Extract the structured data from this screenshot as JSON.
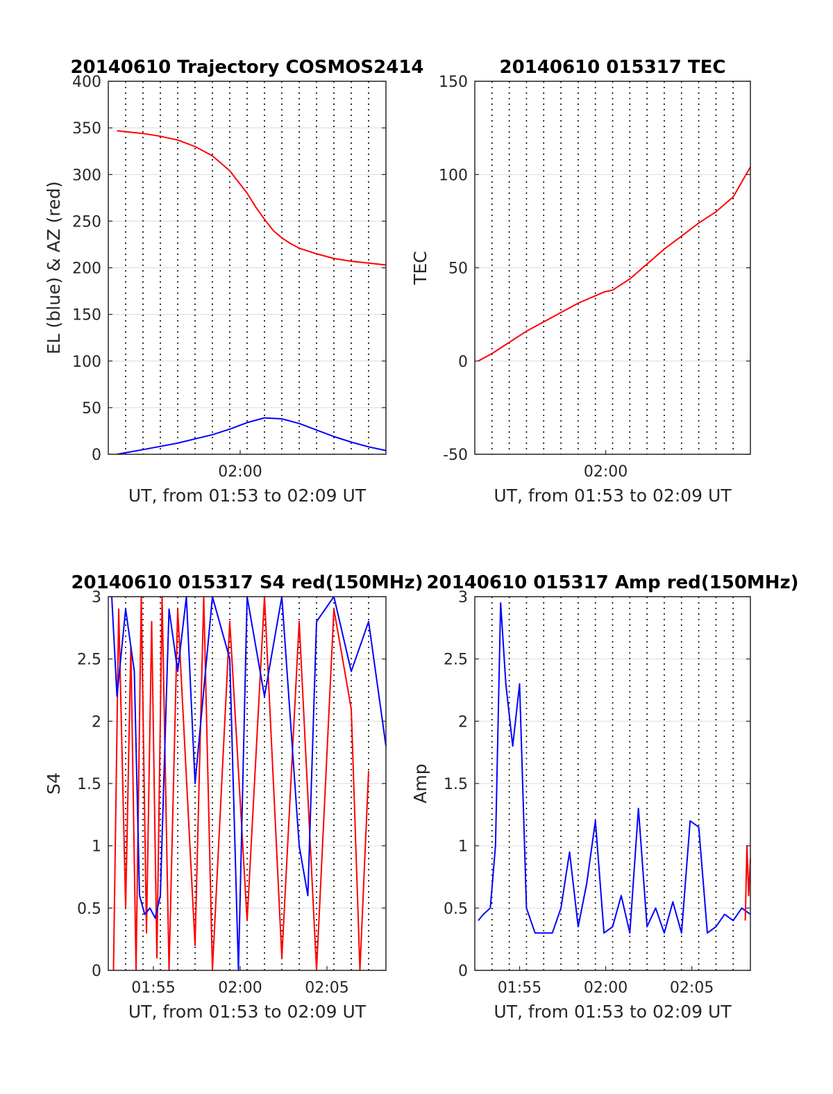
{
  "colors": {
    "el": "#0000ff",
    "az": "#ff0000",
    "tec": "#ff0000",
    "s4_red": "#ff0000",
    "s4_blue": "#0000ff",
    "grid": "#e0e0e0",
    "axis": "#262626"
  },
  "chart_data": [
    {
      "id": "trajectory",
      "type": "line",
      "title": "20140610 Trajectory COSMOS2414",
      "xlabel": "UT, from 01:53 to 02:09 UT",
      "ylabel": "EL (blue) & AZ (red)",
      "xlim": [
        0,
        16
      ],
      "ylim": [
        0,
        400
      ],
      "yticks": [
        "0",
        "50",
        "100",
        "150",
        "200",
        "250",
        "300",
        "350",
        "400"
      ],
      "xticks": [
        "02:00"
      ],
      "series": [
        {
          "name": "EL",
          "color": "#0000ff",
          "x": [
            0.5,
            2,
            4,
            6,
            7,
            8,
            9,
            10,
            11,
            12,
            13,
            14,
            15,
            16
          ],
          "y": [
            0,
            5,
            12,
            21,
            27,
            34,
            39,
            38,
            33,
            26,
            19,
            13,
            8,
            4
          ]
        },
        {
          "name": "AZ",
          "color": "#ff0000",
          "x": [
            0.5,
            2,
            3,
            4,
            5,
            6,
            7,
            7.5,
            8,
            8.5,
            9,
            9.5,
            10,
            10.5,
            11,
            12,
            13,
            14,
            15,
            16
          ],
          "y": [
            347,
            344,
            341,
            337,
            330,
            320,
            304,
            292,
            280,
            265,
            252,
            240,
            232,
            226,
            221,
            215,
            210,
            207,
            205,
            203
          ]
        }
      ]
    },
    {
      "id": "tec",
      "type": "line",
      "title": "20140610 015317 TEC",
      "xlabel": "UT, from 01:53 to 02:09 UT",
      "ylabel": "TEC",
      "xlim": [
        0,
        16
      ],
      "ylim": [
        -50,
        150
      ],
      "yticks": [
        "-50",
        "0",
        "50",
        "100",
        "150"
      ],
      "xticks": [
        "02:00"
      ],
      "series": [
        {
          "name": "TEC",
          "color": "#ff0000",
          "x": [
            0.2,
            1,
            2,
            3,
            4,
            5,
            6,
            7,
            7.5,
            8,
            9,
            10,
            11,
            12,
            13,
            14,
            15,
            16
          ],
          "y": [
            0,
            4,
            10,
            16,
            21,
            26,
            31,
            35,
            37,
            38,
            44,
            52,
            60,
            67,
            74,
            80,
            88,
            104
          ]
        }
      ]
    },
    {
      "id": "s4",
      "type": "line",
      "title": "20140610 015317 S4 red(150MHz)",
      "xlabel": "UT, from 01:53 to 02:09 UT",
      "ylabel": "S4",
      "xlim": [
        0,
        16
      ],
      "ylim": [
        0,
        3
      ],
      "yticks": [
        "0",
        "0.5",
        "1",
        "1.5",
        "2",
        "2.5",
        "3"
      ],
      "xticks": [
        "01:55",
        "02:00",
        "02:05"
      ],
      "series": [
        {
          "name": "S4 red",
          "color": "#ff0000",
          "x": [
            0.3,
            0.6,
            1,
            1.3,
            1.6,
            1.9,
            2.2,
            2.5,
            2.8,
            3.1,
            3.5,
            4,
            5,
            5.5,
            6,
            7,
            8,
            9,
            10,
            11,
            12,
            13,
            14,
            14.5,
            15
          ],
          "y": [
            0,
            2.9,
            0.5,
            2.6,
            0,
            3,
            0.3,
            2.8,
            0.1,
            3,
            0,
            2.9,
            0.2,
            3,
            0,
            2.8,
            0.4,
            3,
            0.1,
            2.8,
            0,
            2.9,
            2.1,
            0,
            1.6
          ]
        },
        {
          "name": "S4 blue",
          "color": "#0000ff",
          "x": [
            0.2,
            0.5,
            1,
            1.5,
            1.8,
            2.1,
            2.4,
            2.7,
            3,
            3.5,
            4,
            4.5,
            5,
            6,
            7,
            7.5,
            8,
            9,
            10,
            11,
            11.5,
            12,
            13,
            14,
            15,
            16
          ],
          "y": [
            3,
            2.2,
            2.9,
            2.4,
            0.6,
            0.45,
            0.5,
            0.42,
            0.6,
            2.9,
            2.4,
            3,
            1.5,
            3,
            2.5,
            0,
            3,
            2.2,
            3,
            1,
            0.6,
            2.8,
            3,
            2.4,
            2.8,
            1.8
          ]
        }
      ]
    },
    {
      "id": "amp",
      "type": "line",
      "title": "20140610 015317 Amp red(150MHz)",
      "xlabel": "UT, from 01:53 to 02:09 UT",
      "ylabel": "Amp",
      "xlim": [
        0,
        16
      ],
      "ylim": [
        0,
        3
      ],
      "yticks": [
        "0",
        "0.5",
        "1",
        "1.5",
        "2",
        "2.5",
        "3"
      ],
      "xticks": [
        "01:55",
        "02:00",
        "02:05"
      ],
      "series": [
        {
          "name": "Amp blue",
          "color": "#0000ff",
          "x": [
            0.2,
            0.5,
            0.9,
            1.2,
            1.5,
            1.8,
            2.2,
            2.6,
            3,
            3.5,
            4,
            4.5,
            5,
            5.5,
            6,
            6.5,
            7,
            7.5,
            8,
            8.5,
            9,
            9.5,
            10,
            10.5,
            11,
            11.5,
            12,
            12.5,
            13,
            13.5,
            14,
            14.5,
            15,
            15.5,
            16
          ],
          "y": [
            0.4,
            0.45,
            0.5,
            1.0,
            2.95,
            2.3,
            1.8,
            2.3,
            0.5,
            0.3,
            0.3,
            0.3,
            0.5,
            0.95,
            0.35,
            0.7,
            1.2,
            0.3,
            0.35,
            0.6,
            0.3,
            1.3,
            0.35,
            0.5,
            0.3,
            0.55,
            0.3,
            1.2,
            1.15,
            0.3,
            0.35,
            0.45,
            0.4,
            0.5,
            0.45
          ]
        },
        {
          "name": "Amp red",
          "color": "#ff0000",
          "x": [
            15.7,
            15.8,
            15.9,
            16
          ],
          "y": [
            0.4,
            1.0,
            0.6,
            0.9
          ]
        }
      ]
    }
  ]
}
